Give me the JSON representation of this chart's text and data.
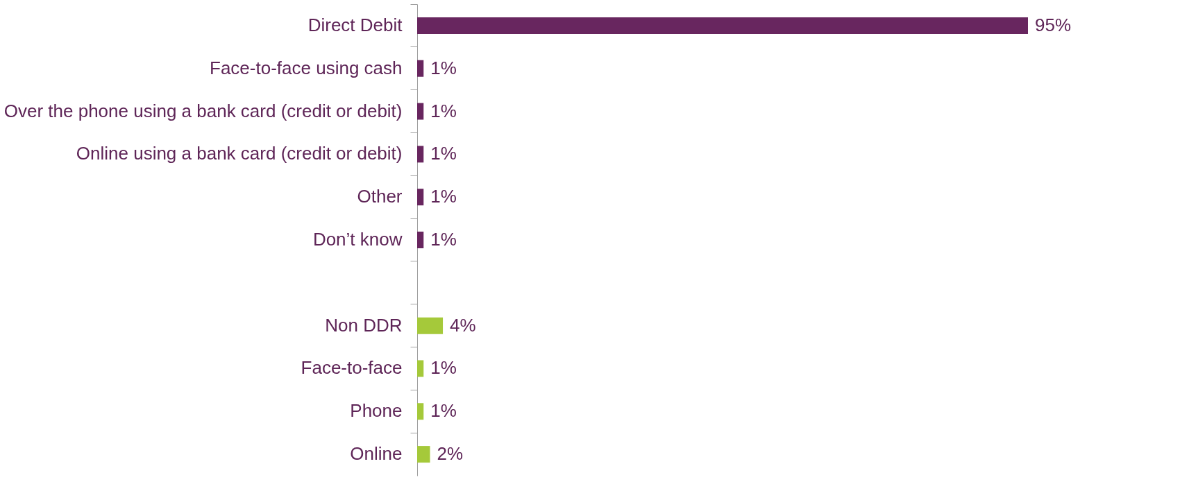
{
  "chart_data": {
    "type": "bar",
    "orientation": "horizontal",
    "categories": [
      "Direct Debit",
      "Face-to-face using cash",
      "Over the phone using a bank card (credit or debit)",
      "Online using a bank card (credit or debit)",
      "Other",
      "Don’t know",
      null,
      "Non DDR",
      "Face-to-face",
      "Phone",
      "Online"
    ],
    "values": [
      95,
      1,
      1,
      1,
      1,
      1,
      null,
      4,
      1,
      1,
      2
    ],
    "value_labels": [
      "95%",
      "1%",
      "1%",
      "1%",
      "1%",
      "1%",
      null,
      "4%",
      "1%",
      "1%",
      "2%"
    ],
    "colors": [
      "#68265f",
      "#68265f",
      "#68265f",
      "#68265f",
      "#68265f",
      "#68265f",
      "#68265f",
      "#a5c93a",
      "#a5c93a",
      "#a5c93a",
      "#a5c93a"
    ],
    "grid": false
  }
}
